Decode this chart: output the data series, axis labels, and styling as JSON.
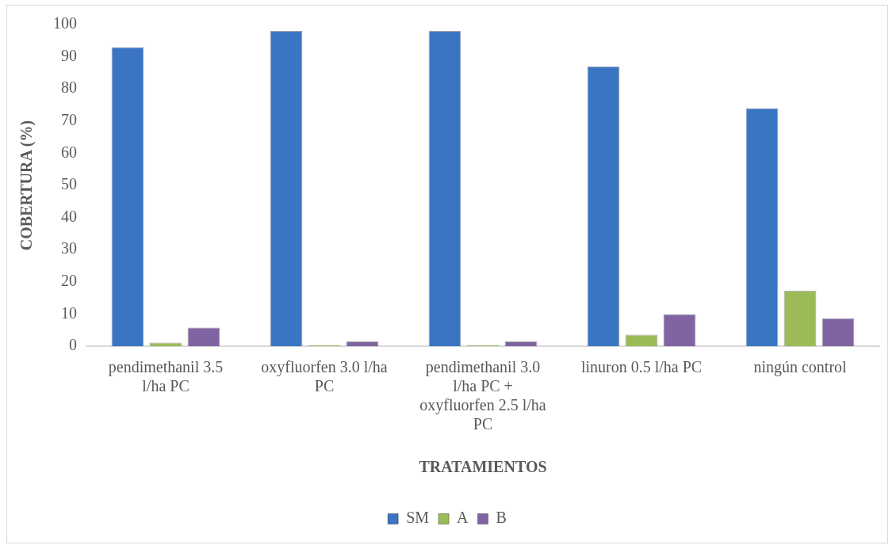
{
  "chart_data": {
    "type": "bar",
    "xlabel": "TRATAMIENTOS",
    "ylabel": "COBERTURA (%)",
    "categories": [
      "pendimethanil 3.5 l/ha PC",
      "oxyfluorfen 3.0 l/ha PC",
      "pendimethanil 3.0 l/ha PC + oxyfluorfen 2.5 l/ha PC",
      "linuron 0.5 l/ha PC",
      "ningún control"
    ],
    "series": [
      {
        "name": "SM",
        "color": "#3a75c4",
        "values": [
          93,
          98,
          98,
          87,
          74
        ]
      },
      {
        "name": "A",
        "color": "#9bbb59",
        "values": [
          1.1,
          0.4,
          0.4,
          3.6,
          17.3
        ]
      },
      {
        "name": "B",
        "color": "#8064a2",
        "values": [
          5.8,
          1.5,
          1.5,
          10,
          8.7
        ]
      }
    ],
    "ylim": [
      0,
      100
    ],
    "yticks": [
      0,
      10,
      20,
      30,
      40,
      50,
      60,
      70,
      80,
      90,
      100
    ],
    "grid": false,
    "legend": "bottom"
  }
}
